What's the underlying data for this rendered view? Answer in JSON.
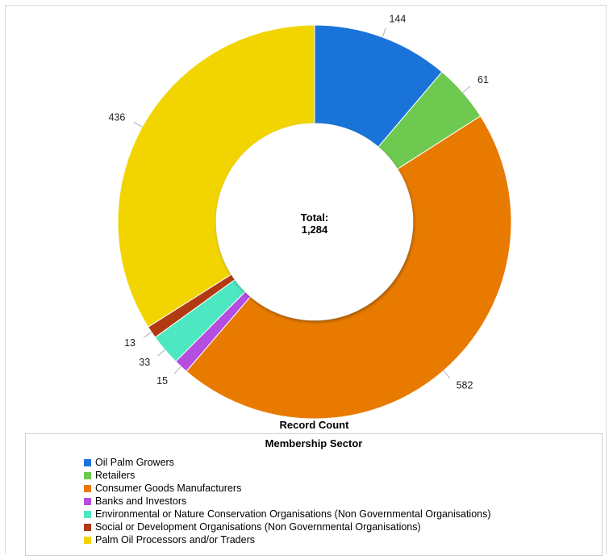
{
  "chart_data": {
    "type": "donut",
    "title": "Record Count",
    "center_label": {
      "line1": "Total:",
      "line2": "1,284"
    },
    "legend_title": "Membership Sector",
    "legend_position": "bottom",
    "slices": [
      {
        "name": "Oil Palm Growers",
        "value": 144,
        "label": "144",
        "color": "#1a73d9"
      },
      {
        "name": "Retailers",
        "value": 61,
        "label": "61",
        "color": "#6dc94f"
      },
      {
        "name": "Consumer Goods Manufacturers",
        "value": 582,
        "label": "582",
        "color": "#e87a00"
      },
      {
        "name": "Banks and Investors",
        "value": 15,
        "label": "15",
        "color": "#b44de0"
      },
      {
        "name": "Environmental or Nature Conservation Organisations (Non Governmental Organisations)",
        "value": 33,
        "label": "33",
        "color": "#4de8c2"
      },
      {
        "name": "Social or Development Organisations (Non Governmental Organisations)",
        "value": 13,
        "label": "13",
        "color": "#b23a12"
      },
      {
        "name": "Palm Oil Processors and/or Traders",
        "value": 436,
        "label": "436",
        "color": "#f2d500"
      }
    ]
  }
}
